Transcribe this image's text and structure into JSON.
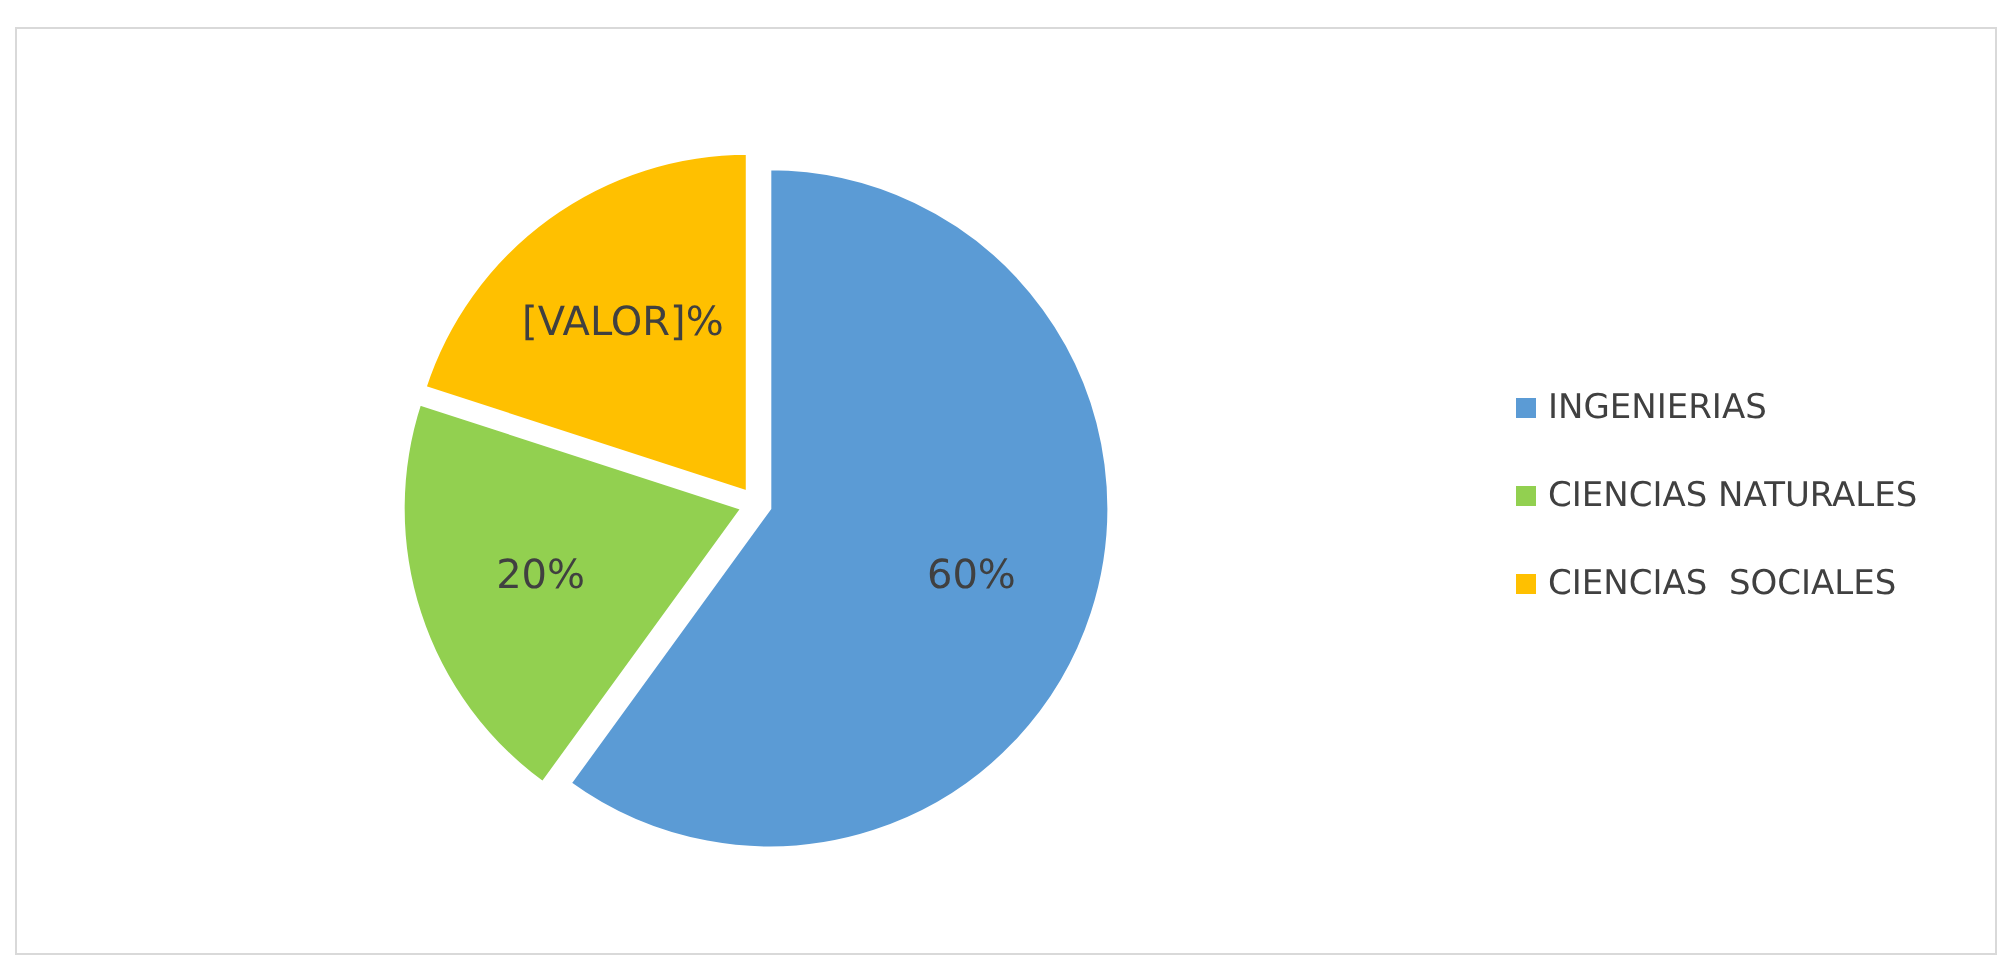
{
  "chart_data": {
    "type": "pie",
    "categories": [
      "INGENIERIAS",
      "CIENCIAS NATURALES",
      "CIENCIAS  SOCIALES"
    ],
    "values": [
      60,
      20,
      20
    ],
    "colors": [
      "#5b9bd5",
      "#92d050",
      "#ffc000"
    ],
    "value_labels": [
      "60%",
      "20%",
      "[VALOR]%"
    ],
    "legend": "right"
  }
}
